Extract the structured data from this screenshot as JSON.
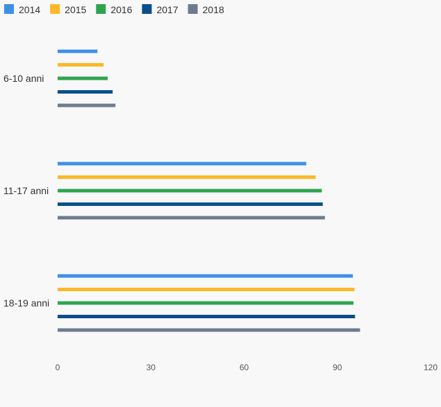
{
  "chart_data": {
    "type": "bar",
    "orientation": "horizontal",
    "categories": [
      "6-10 anni",
      "11-17 anni",
      "18-19 anni"
    ],
    "series": [
      {
        "name": "2014",
        "color": "#3f8fe8",
        "values": [
          12.8,
          80,
          95
        ]
      },
      {
        "name": "2015",
        "color": "#fbb829",
        "values": [
          14.8,
          83,
          95.5
        ]
      },
      {
        "name": "2016",
        "color": "#2ea44f",
        "values": [
          16.1,
          85,
          95.2
        ]
      },
      {
        "name": "2017",
        "color": "#0b4f8a",
        "values": [
          17.7,
          85.3,
          95.7
        ]
      },
      {
        "name": "2018",
        "color": "#6e7b8f",
        "values": [
          18.6,
          86,
          97.3
        ]
      }
    ],
    "xlim": [
      0,
      120
    ],
    "xticks": [
      0,
      30,
      60,
      90,
      120
    ],
    "legend_position": "top-left",
    "grid": false
  }
}
